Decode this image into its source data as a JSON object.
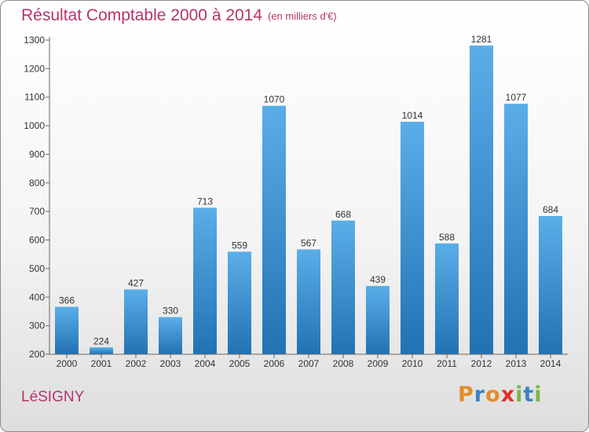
{
  "chart_data": {
    "type": "bar",
    "title": "Résultat Comptable 2000 à 2014",
    "subtitle": "(en milliers d'€)",
    "categories": [
      "2000",
      "2001",
      "2002",
      "2003",
      "2004",
      "2005",
      "2006",
      "2007",
      "2008",
      "2009",
      "2010",
      "2011",
      "2012",
      "2013",
      "2014"
    ],
    "values": [
      366,
      224,
      427,
      330,
      713,
      559,
      1070,
      567,
      668,
      439,
      1014,
      588,
      1281,
      1077,
      684
    ],
    "ylim": [
      200,
      1300
    ],
    "yticks": [
      200,
      300,
      400,
      500,
      600,
      700,
      800,
      900,
      1000,
      1100,
      1200,
      1300
    ],
    "xlabel": "",
    "ylabel": "",
    "grid": false,
    "colors": {
      "bar_top": "#5aaee8",
      "bar_bottom": "#2272b3",
      "title": "#b8336a",
      "axis": "#666666"
    }
  },
  "footer": {
    "city": "LéSIGNY",
    "logo": {
      "letters": [
        "P",
        "r",
        "o",
        "x",
        "i",
        "t",
        "i"
      ],
      "colors": [
        "#e48b2a",
        "#3b82c4",
        "#e48b2a",
        "#e0312b",
        "#7ab648",
        "#3b82c4",
        "#7ab648"
      ]
    }
  }
}
